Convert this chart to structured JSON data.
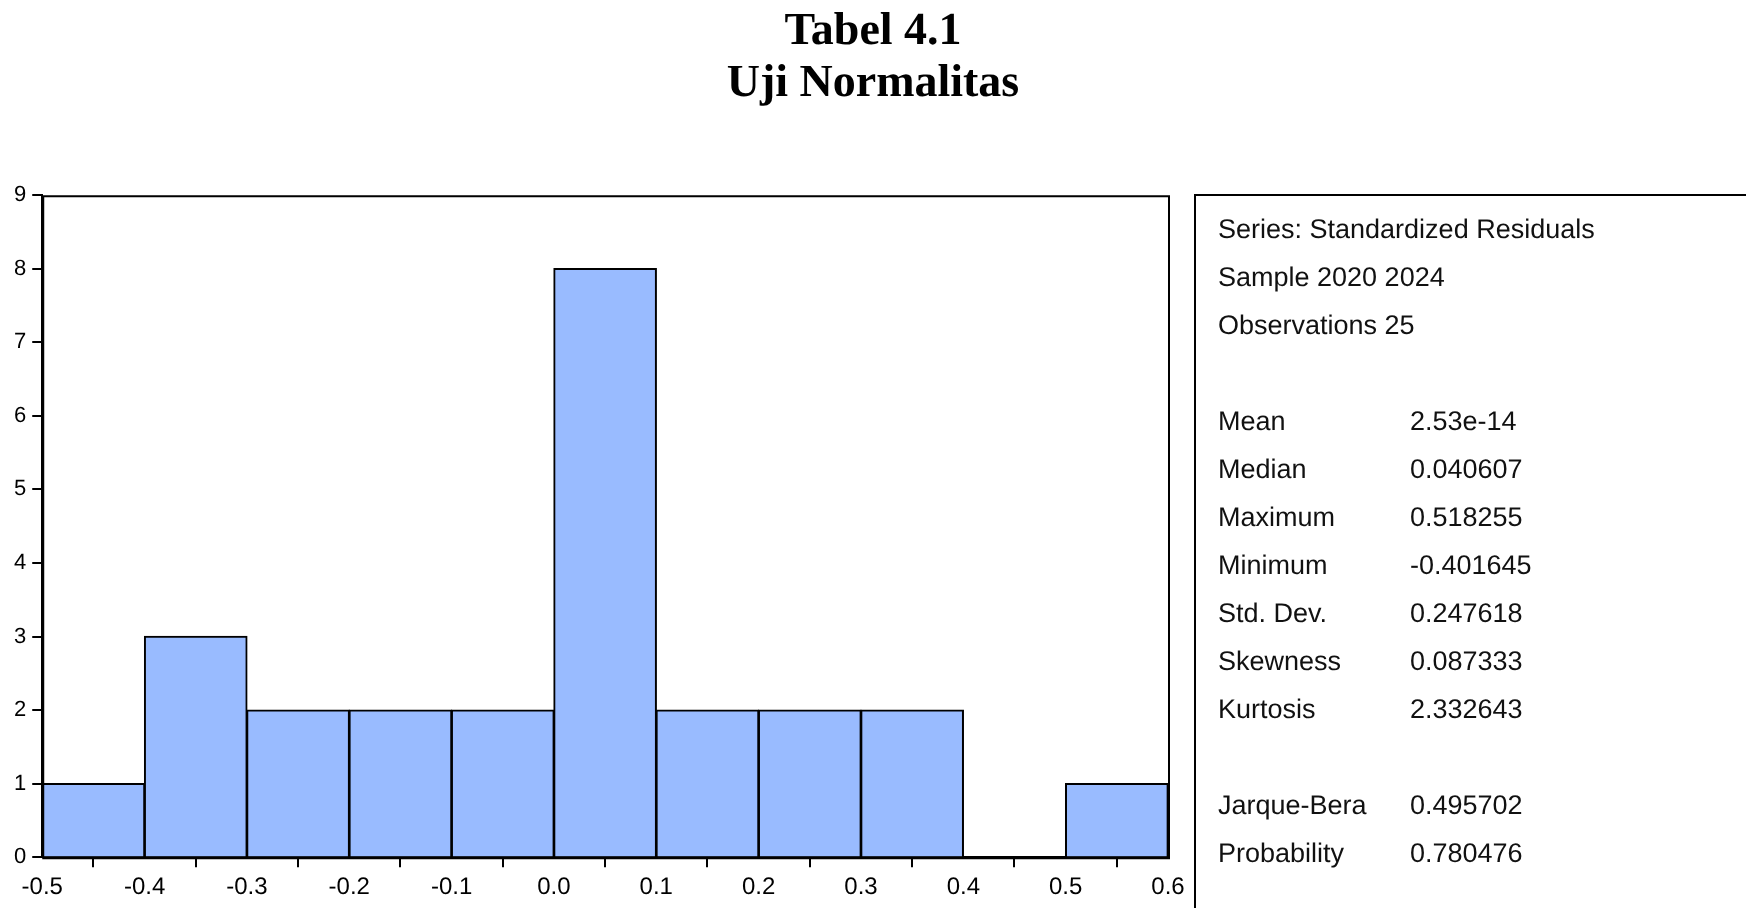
{
  "chart_data": [
    {
      "type": "histogram",
      "title": "Tabel 4.1\nUji Normalitas",
      "bins": [
        -0.5,
        -0.4,
        -0.3,
        -0.2,
        -0.1,
        0,
        0.1,
        0.2,
        0.3,
        0.4,
        0.5,
        0.6
      ],
      "values": [
        1,
        3,
        2,
        2,
        2,
        8,
        2,
        2,
        2,
        0,
        1
      ],
      "color": "#99bbff",
      "xlim": [
        -0.5,
        0.6
      ],
      "xticks": [
        -0.5,
        -0.4,
        -0.3,
        -0.2,
        -0.1,
        {
          "value": 0,
          "label": "0.0"
        },
        0.1,
        0.2,
        0.3,
        0.4,
        0.5,
        0.6
      ],
      "ylim": [
        0,
        9
      ],
      "yticks": [
        0,
        1,
        2,
        3,
        4,
        5,
        6,
        7,
        8,
        9
      ],
      "grid": false,
      "legend": false
    },
    {
      "type": "other",
      "annotations": [
        "Series: Standardized Residuals",
        "Sample 2020 2024",
        "Observations 25"
      ],
      "categories": [
        "Mean",
        "Median",
        "Maximum",
        "Minimum",
        "Std. Dev.",
        "Skewness",
        "Kurtosis",
        "Jarque-Bera",
        "Probability"
      ],
      "value_labels": [
        "2.53e-14",
        "0.040607",
        "0.518255",
        "-0.401645",
        "0.247618",
        "0.087333",
        "2.332643",
        "0.495702",
        "0.780476"
      ]
    }
  ]
}
